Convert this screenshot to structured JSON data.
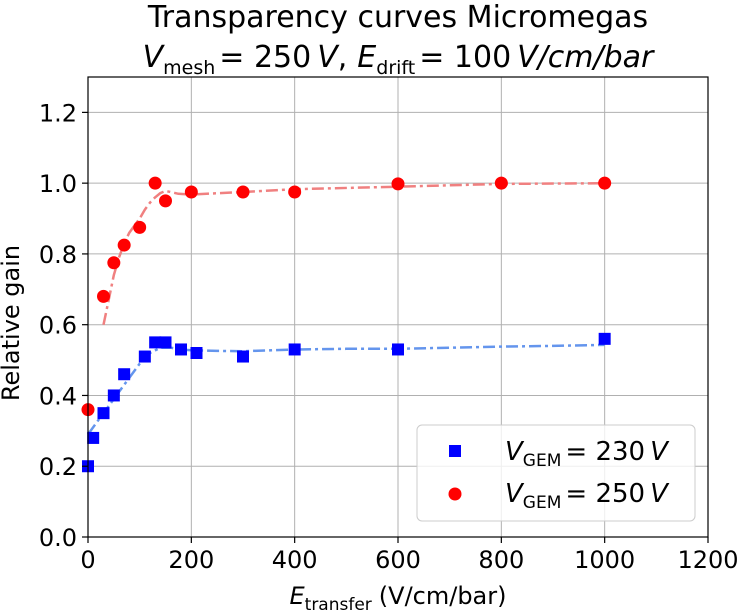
{
  "chart_data": {
    "type": "scatter",
    "title_line1": "Transparency curves Micromegas",
    "title_line2": {
      "v_symbol": "V",
      "v_sub": "mesh",
      "v_value": "= 250",
      "v_unit": "V",
      "sep": ",",
      "e_symbol": "E",
      "e_sub": "drift",
      "e_value": "= 100",
      "e_unit": "V/cm/bar"
    },
    "xlabel": {
      "symbol": "E",
      "sub": "transfer",
      "rest": "(V/cm/bar)"
    },
    "ylabel": "Relative gain",
    "xlim": [
      0,
      1200
    ],
    "ylim": [
      0,
      1.3
    ],
    "xticks": [
      0,
      200,
      400,
      600,
      800,
      1000,
      1200
    ],
    "yticks": [
      0.0,
      0.2,
      0.4,
      0.6,
      0.8,
      1.0,
      1.2
    ],
    "ytick_labels": [
      "0.0",
      "0.2",
      "0.4",
      "0.6",
      "0.8",
      "1.0",
      "1.2"
    ],
    "grid": true,
    "legend_position": "bottom-right",
    "series": [
      {
        "name": "V_GEM = 230 V",
        "legend_symbol": "V",
        "legend_sub": "GEM",
        "legend_value": "= 230",
        "legend_unit": "V",
        "marker": "square",
        "color": "#0000ff",
        "x": [
          0,
          10,
          30,
          50,
          70,
          110,
          130,
          150,
          180,
          210,
          300,
          400,
          600,
          1000
        ],
        "y": [
          0.2,
          0.28,
          0.35,
          0.4,
          0.46,
          0.51,
          0.55,
          0.55,
          0.53,
          0.52,
          0.51,
          0.53,
          0.53,
          0.56
        ],
        "fit_color": "#6495ed",
        "fit": {
          "x": [
            0,
            20,
            40,
            60,
            80,
            100,
            120,
            140,
            160,
            180,
            200,
            250,
            300,
            400,
            500,
            600,
            700,
            800,
            900,
            1000
          ],
          "y": [
            0.29,
            0.33,
            0.37,
            0.41,
            0.45,
            0.49,
            0.52,
            0.535,
            0.535,
            0.53,
            0.528,
            0.526,
            0.525,
            0.53,
            0.532,
            0.532,
            0.535,
            0.538,
            0.54,
            0.543
          ]
        }
      },
      {
        "name": "V_GEM = 250 V",
        "legend_symbol": "V",
        "legend_sub": "GEM",
        "legend_value": "= 250",
        "legend_unit": "V",
        "marker": "circle",
        "color": "#ff0000",
        "x": [
          0,
          30,
          50,
          70,
          100,
          130,
          150,
          200,
          300,
          400,
          600,
          800,
          1000
        ],
        "y": [
          0.36,
          0.68,
          0.775,
          0.825,
          0.875,
          1.0,
          0.95,
          0.975,
          0.975,
          0.975,
          0.998,
          1.0,
          1.0
        ],
        "fit_color": "#f08080",
        "fit": {
          "x": [
            30,
            40,
            50,
            60,
            70,
            80,
            90,
            100,
            110,
            120,
            130,
            140,
            150,
            175,
            200,
            300,
            400,
            600,
            800,
            1000
          ],
          "y": [
            0.6,
            0.67,
            0.74,
            0.79,
            0.83,
            0.86,
            0.88,
            0.9,
            0.925,
            0.945,
            0.96,
            0.972,
            0.978,
            0.97,
            0.968,
            0.975,
            0.983,
            0.99,
            0.998,
            1.0
          ]
        }
      }
    ]
  }
}
